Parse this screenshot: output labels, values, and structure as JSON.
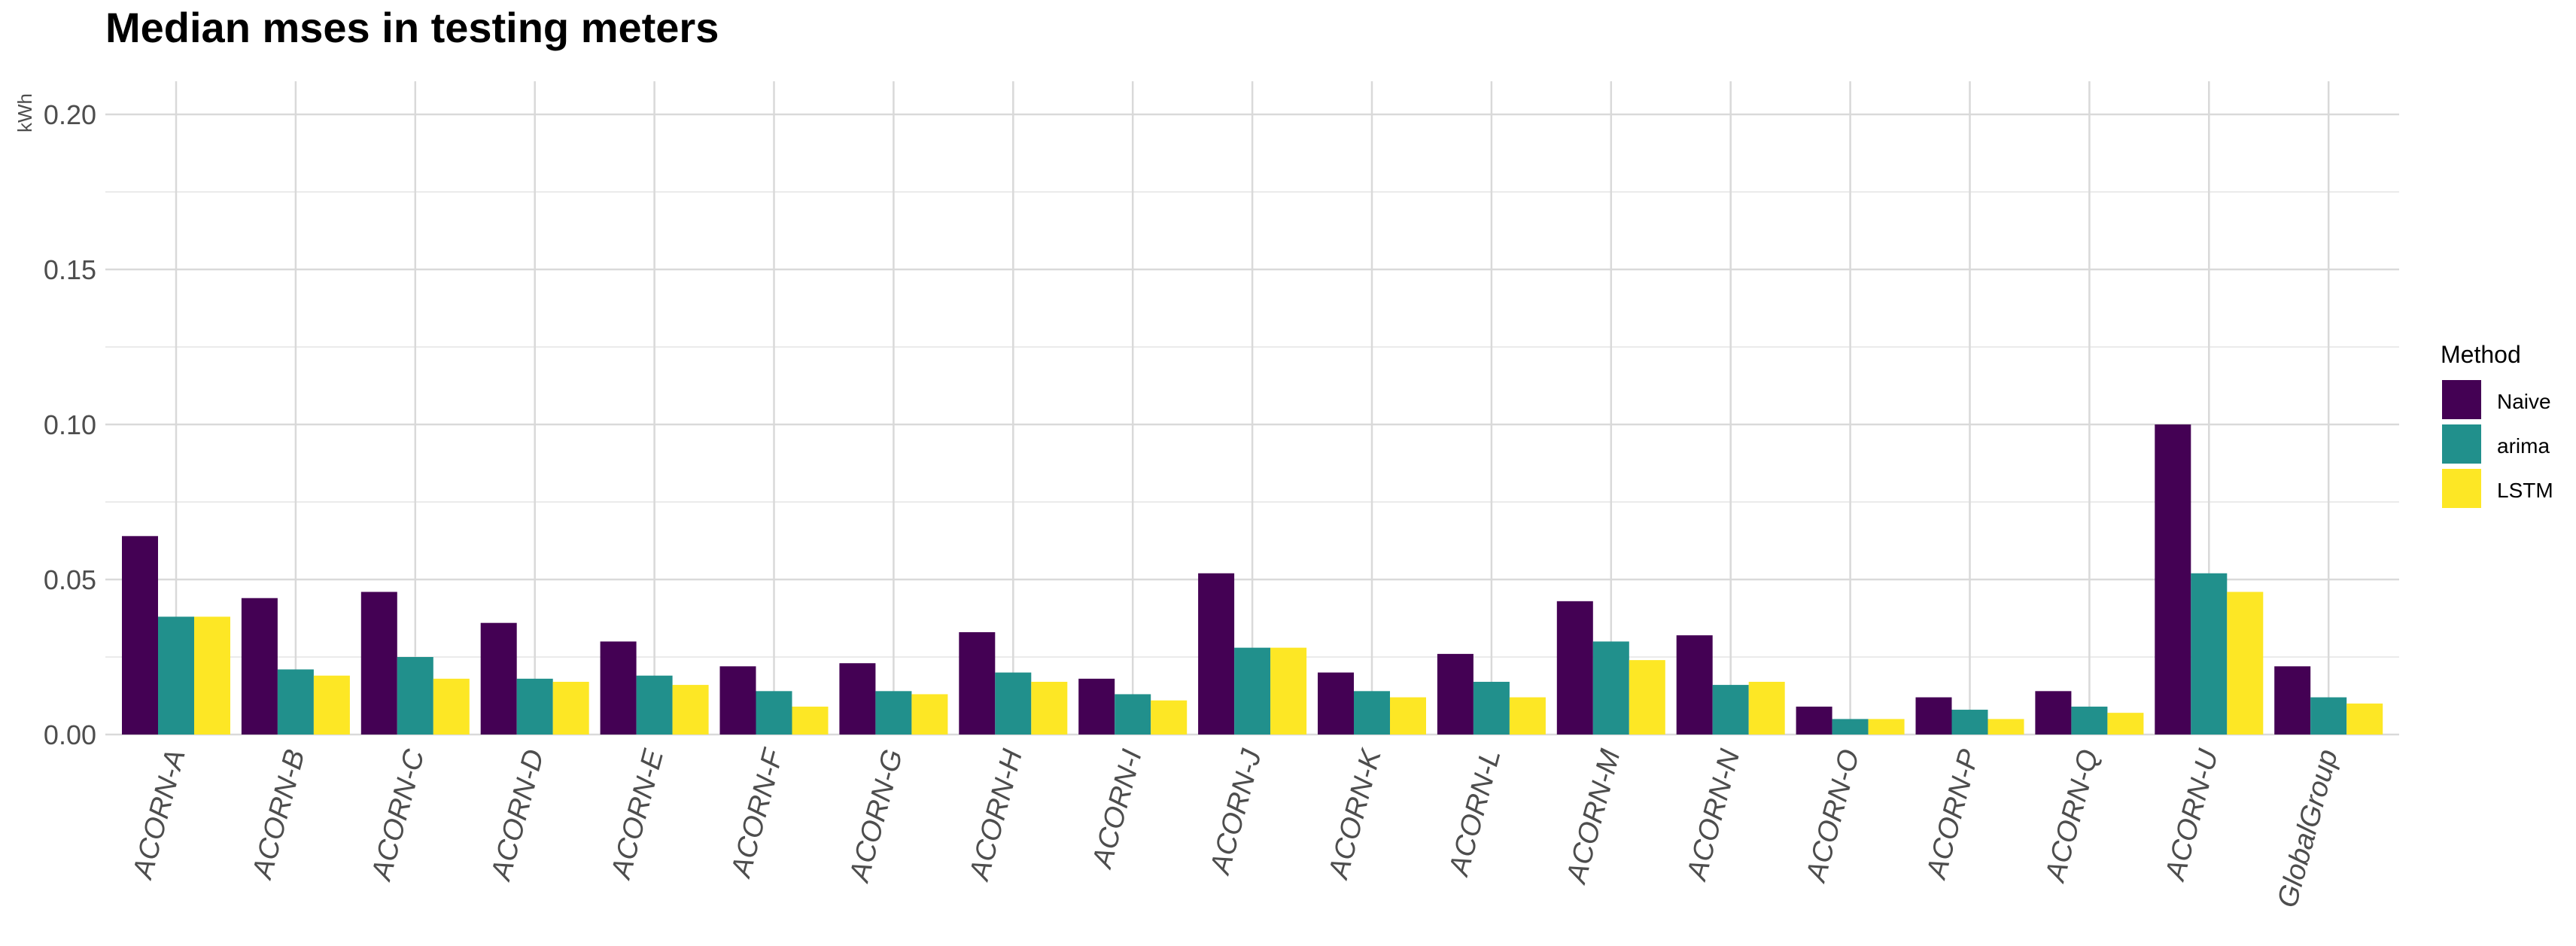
{
  "chart_data": {
    "type": "bar",
    "title": "Median mses in testing meters",
    "ylabel": "kWh",
    "xlabel": "",
    "ylim": [
      0,
      0.2
    ],
    "yticks": [
      "0.00",
      "0.05",
      "0.10",
      "0.15",
      "0.20"
    ],
    "grid": true,
    "legend_title": "Method",
    "legend_position": "right",
    "categories": [
      "ACORN-A",
      "ACORN-B",
      "ACORN-C",
      "ACORN-D",
      "ACORN-E",
      "ACORN-F",
      "ACORN-G",
      "ACORN-H",
      "ACORN-I",
      "ACORN-J",
      "ACORN-K",
      "ACORN-L",
      "ACORN-M",
      "ACORN-N",
      "ACORN-O",
      "ACORN-P",
      "ACORN-Q",
      "ACORN-U",
      "GlobalGroup"
    ],
    "series": [
      {
        "name": "Naive",
        "color": "#440154",
        "values": [
          0.064,
          0.044,
          0.046,
          0.036,
          0.03,
          0.022,
          0.023,
          0.033,
          0.018,
          0.052,
          0.02,
          0.026,
          0.043,
          0.032,
          0.009,
          0.012,
          0.014,
          0.1,
          0.022
        ]
      },
      {
        "name": "arima",
        "color": "#21908C",
        "values": [
          0.038,
          0.021,
          0.025,
          0.018,
          0.019,
          0.014,
          0.014,
          0.02,
          0.013,
          0.028,
          0.014,
          0.017,
          0.03,
          0.016,
          0.005,
          0.008,
          0.009,
          0.052,
          0.012
        ]
      },
      {
        "name": "LSTM",
        "color": "#FDE725",
        "values": [
          0.038,
          0.019,
          0.018,
          0.017,
          0.016,
          0.009,
          0.013,
          0.017,
          0.011,
          0.028,
          0.012,
          0.012,
          0.024,
          0.017,
          0.005,
          0.005,
          0.007,
          0.046,
          0.01
        ]
      }
    ]
  }
}
